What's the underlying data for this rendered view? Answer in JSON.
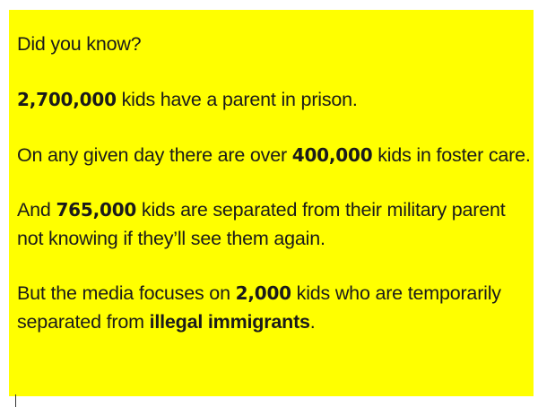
{
  "intro": "Did you know?",
  "prison": {
    "number": "2,700,000",
    "text": " kids have a parent in prison."
  },
  "foster": {
    "before": "On any given day there are over ",
    "number": "400,000",
    "after": " kids in foster care."
  },
  "military": {
    "before": "And ",
    "number": "765,000",
    "after": " kids are separated from their military parent not knowing if they’ll see them again."
  },
  "media": {
    "before": "But the media focuses on ",
    "number": "2,000",
    "middle": " kids who are temporarily separated from ",
    "emphasis": "illegal immigrants",
    "after": "."
  },
  "colors": {
    "background": "#ffff00",
    "text": "#1a1a1a"
  }
}
